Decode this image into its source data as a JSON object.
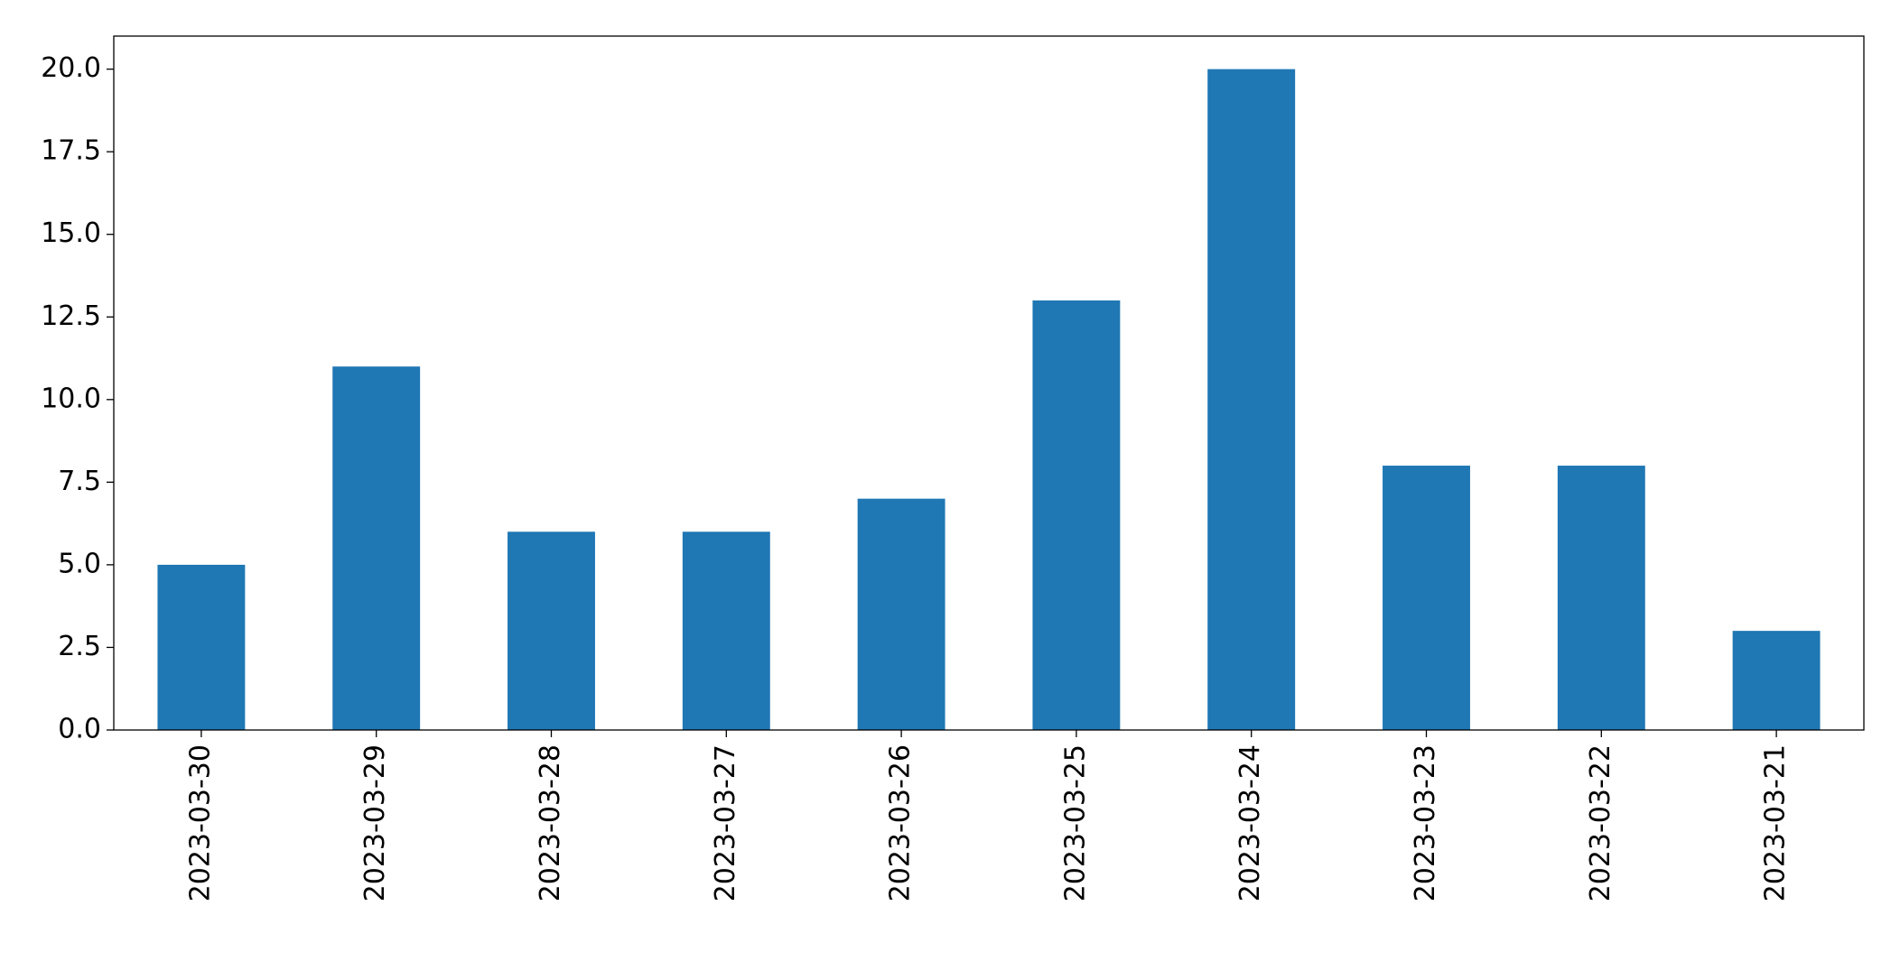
{
  "chart_data": {
    "type": "bar",
    "categories": [
      "2023-03-30",
      "2023-03-29",
      "2023-03-28",
      "2023-03-27",
      "2023-03-26",
      "2023-03-25",
      "2023-03-24",
      "2023-03-23",
      "2023-03-22",
      "2023-03-21"
    ],
    "values": [
      5,
      11,
      6,
      6,
      7,
      13,
      20,
      8,
      8,
      3
    ],
    "color": "#1f77b4",
    "ylim": [
      0,
      21
    ],
    "yticks": [
      {
        "value": 0,
        "label": "0.0"
      },
      2.5,
      {
        "value": 5,
        "label": "5.0"
      },
      7.5,
      {
        "value": 10,
        "label": "10.0"
      },
      12.5,
      {
        "value": 15,
        "label": "15.0"
      },
      17.5,
      {
        "value": 20,
        "label": "20.0"
      }
    ],
    "grid": false
  }
}
